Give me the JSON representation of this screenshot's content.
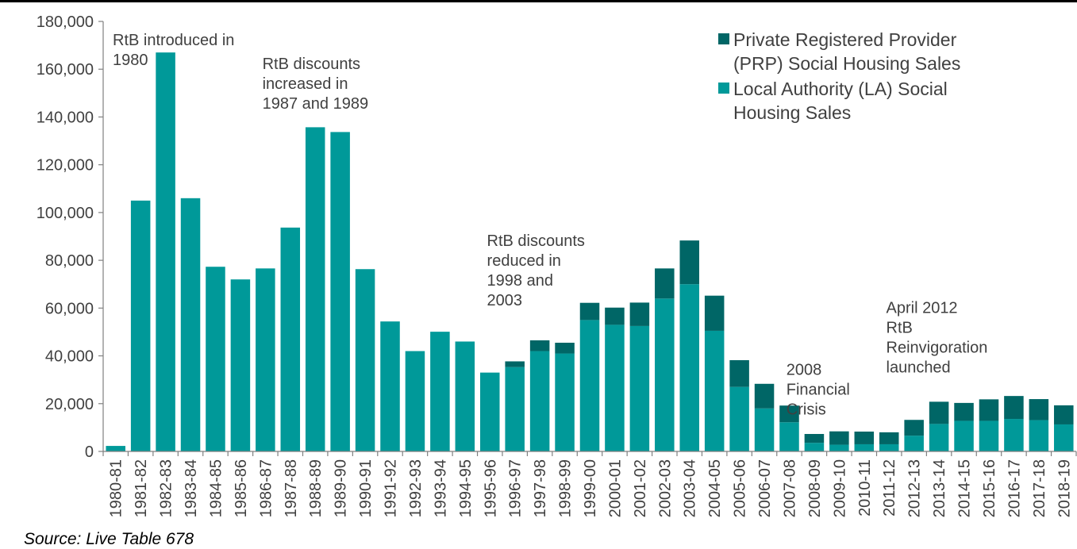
{
  "colors": {
    "la": "#009999",
    "prp": "#006666",
    "axis": "#808080",
    "text": "#404040"
  },
  "source_note": "Source: Live Table 678",
  "chart_data": {
    "type": "bar",
    "stacked": true,
    "title": "",
    "xlabel": "",
    "ylabel": "",
    "ylim": [
      0,
      180000
    ],
    "yticks": [
      0,
      20000,
      40000,
      60000,
      80000,
      100000,
      120000,
      140000,
      160000,
      180000
    ],
    "ytick_labels": [
      "0",
      "20,000",
      "40,000",
      "60,000",
      "80,000",
      "100,000",
      "120,000",
      "140,000",
      "160,000",
      "180,000"
    ],
    "legend_position": "top-right",
    "categories": [
      "1980-81",
      "1981-82",
      "1982-83",
      "1983-84",
      "1984-85",
      "1985-86",
      "1986-87",
      "1987-88",
      "1988-89",
      "1989-90",
      "1990-91",
      "1991-92",
      "1992-93",
      "1993-94",
      "1994-95",
      "1995-96",
      "1996-97",
      "1997-98",
      "1998-99",
      "1999-00",
      "2000-01",
      "2001-02",
      "2002-03",
      "2003-04",
      "2004-05",
      "2005-06",
      "2006-07",
      "2007-08",
      "2008-09",
      "2009-10",
      "2010-11",
      "2011-12",
      "2012-13",
      "2013-14",
      "2014-15",
      "2015-16",
      "2016-17",
      "2017-18",
      "2018-19"
    ],
    "series": [
      {
        "name": "Local Authority (LA) Social Housing Sales",
        "color": "#009999",
        "values": [
          2300,
          105000,
          167000,
          106000,
          77300,
          72000,
          76600,
          93700,
          135700,
          133700,
          76300,
          54400,
          42000,
          50100,
          46000,
          33000,
          35300,
          42000,
          41000,
          55000,
          53000,
          52500,
          64000,
          70000,
          50500,
          27000,
          18000,
          12200,
          3600,
          2800,
          3000,
          3000,
          6600,
          11500,
          12800,
          12800,
          13600,
          13100,
          11300
        ]
      },
      {
        "name": "Private Registered Provider (PRP) Social Housing Sales",
        "color": "#006666",
        "values": [
          0,
          0,
          0,
          0,
          0,
          0,
          0,
          0,
          0,
          0,
          0,
          0,
          0,
          0,
          0,
          0,
          2400,
          4500,
          4500,
          7200,
          7200,
          9800,
          12600,
          18300,
          14700,
          11200,
          10300,
          7000,
          3700,
          5600,
          5300,
          5000,
          6600,
          9300,
          7500,
          9000,
          9600,
          8800,
          8000
        ]
      }
    ],
    "annotations": [
      {
        "lines": [
          "RtB introduced in",
          "1980"
        ],
        "category": "1980-81",
        "value": 170000
      },
      {
        "lines": [
          "RtB discounts",
          "increased  in",
          "1987 and 1989"
        ],
        "category": "1986-87",
        "value": 160000
      },
      {
        "lines": [
          "RtB discounts",
          "reduced in",
          "1998 and",
          "2003"
        ],
        "category": "1995-96",
        "value": 86000
      },
      {
        "lines": [
          "2008",
          "Financial",
          "Crisis"
        ],
        "category": "2007-08",
        "value": 32000
      },
      {
        "lines": [
          "April 2012",
          "RtB",
          "Reinvigoration",
          "launched"
        ],
        "category": "2011-12",
        "value": 58000
      }
    ]
  }
}
